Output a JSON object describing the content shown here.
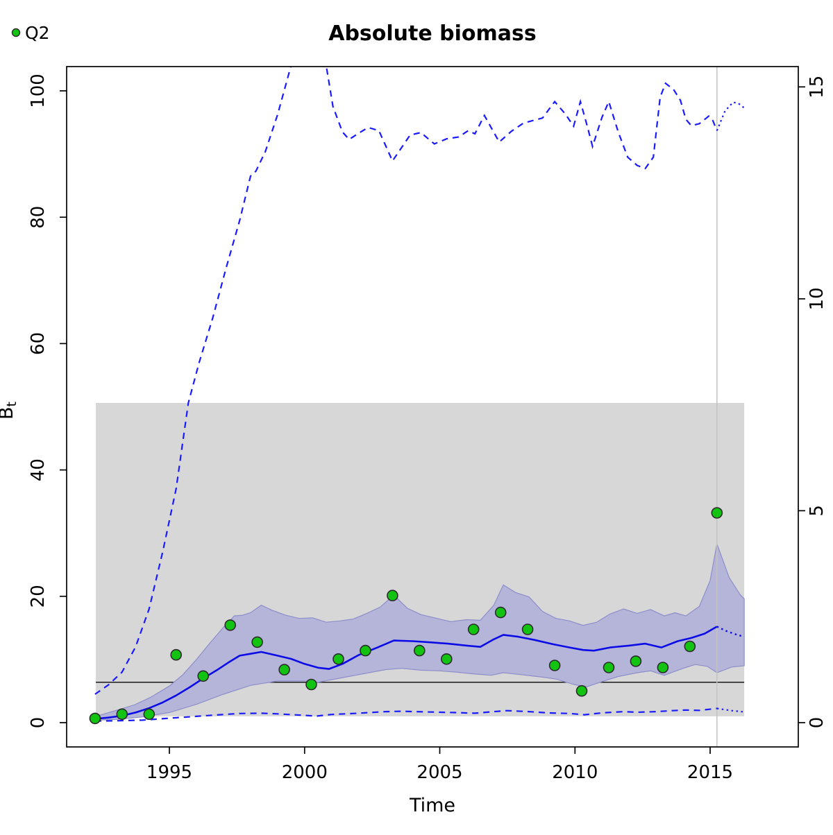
{
  "chart_data": {
    "type": "line",
    "title": "Absolute biomass",
    "xlabel": "Time",
    "ylabel": {
      "main": "B",
      "sub": "t"
    },
    "legend": [
      {
        "label": "Q2",
        "marker": "filled-circle",
        "color": "#12c312"
      }
    ],
    "axes": {
      "x": {
        "ticks": [
          1995,
          2000,
          2005,
          2010,
          2015
        ],
        "range": [
          1991.2,
          2018.26
        ],
        "grid": false
      },
      "y_left": {
        "ticks": [
          0,
          20,
          40,
          60,
          80,
          100
        ],
        "range": [
          -3.84,
          103.84
        ]
      },
      "y_right": {
        "ticks": [
          0,
          5,
          10,
          15
        ],
        "range": [
          -0.573,
          15.48
        ]
      }
    },
    "reference": {
      "bmsy_line": {
        "value": 6.4,
        "axis": "left",
        "x_span": [
          1992.28,
          2016.26
        ],
        "color": "#1a1a1a"
      },
      "bmsy_ci_box": {
        "low": 1.0,
        "high": 50.6,
        "x_span": [
          1992.28,
          2016.26
        ],
        "color": "#d7d7d7"
      },
      "data_end_vline": {
        "x": 2015.25,
        "color": "#c2c2c2"
      }
    },
    "colors": {
      "solid_line": "#0b0be6",
      "dashed_line": "#1a1aff",
      "band_fill": "#b5b5da",
      "band_edge": "#8d8dcb",
      "point_fill": "#12c312",
      "point_edge": "#2b2b2b"
    },
    "series": {
      "biomass_estimate": {
        "name": "biomass estimate (solid blue, left axis)",
        "main": [
          [
            1992.25,
            0.6
          ],
          [
            1992.75,
            0.8
          ],
          [
            1993.25,
            1.1
          ],
          [
            1993.75,
            1.6
          ],
          [
            1994.25,
            2.3
          ],
          [
            1994.75,
            3.2
          ],
          [
            1995.25,
            4.3
          ],
          [
            1995.75,
            5.6
          ],
          [
            1996.25,
            7.0
          ],
          [
            1996.75,
            8.3
          ],
          [
            1997.25,
            9.7
          ],
          [
            1997.6,
            10.6
          ],
          [
            1998.0,
            10.9
          ],
          [
            1998.4,
            11.2
          ],
          [
            1999.0,
            10.6
          ],
          [
            1999.5,
            10.1
          ],
          [
            2000.0,
            9.3
          ],
          [
            2000.5,
            8.7
          ],
          [
            2000.9,
            8.5
          ],
          [
            2001.4,
            9.3
          ],
          [
            2002.0,
            10.7
          ],
          [
            2002.7,
            11.9
          ],
          [
            2003.3,
            13.0
          ],
          [
            2004.0,
            12.9
          ],
          [
            2004.7,
            12.7
          ],
          [
            2005.3,
            12.5
          ],
          [
            2006.0,
            12.2
          ],
          [
            2006.5,
            12.0
          ],
          [
            2007.0,
            13.2
          ],
          [
            2007.35,
            13.9
          ],
          [
            2007.9,
            13.6
          ],
          [
            2008.5,
            13.1
          ],
          [
            2009.2,
            12.4
          ],
          [
            2009.8,
            11.9
          ],
          [
            2010.3,
            11.5
          ],
          [
            2010.7,
            11.4
          ],
          [
            2011.3,
            11.9
          ],
          [
            2012.0,
            12.2
          ],
          [
            2012.6,
            12.5
          ],
          [
            2013.2,
            11.9
          ],
          [
            2013.8,
            12.9
          ],
          [
            2014.3,
            13.4
          ],
          [
            2014.8,
            14.1
          ],
          [
            2015.25,
            15.2
          ]
        ],
        "forecast": [
          [
            2015.25,
            15.2
          ],
          [
            2015.6,
            14.5
          ],
          [
            2016.0,
            13.9
          ],
          [
            2016.26,
            13.6
          ]
        ]
      },
      "ci_band": {
        "name": "95% CI of biomass (shaded band, left axis)",
        "upper": [
          [
            1992.28,
            1.0
          ],
          [
            1993.0,
            1.9
          ],
          [
            1993.7,
            2.8
          ],
          [
            1994.3,
            4.0
          ],
          [
            1995.0,
            5.8
          ],
          [
            1995.5,
            7.6
          ],
          [
            1996.0,
            10.0
          ],
          [
            1996.5,
            12.6
          ],
          [
            1997.0,
            15.1
          ],
          [
            1997.4,
            16.9
          ],
          [
            1997.7,
            17.0
          ],
          [
            1998.0,
            17.4
          ],
          [
            1998.4,
            18.6
          ],
          [
            1998.8,
            17.8
          ],
          [
            1999.3,
            17.0
          ],
          [
            1999.8,
            16.5
          ],
          [
            2000.3,
            16.6
          ],
          [
            2000.8,
            15.9
          ],
          [
            2001.3,
            16.1
          ],
          [
            2001.8,
            16.4
          ],
          [
            2002.3,
            17.3
          ],
          [
            2002.8,
            18.3
          ],
          [
            2003.3,
            20.2
          ],
          [
            2003.8,
            18.1
          ],
          [
            2004.3,
            17.1
          ],
          [
            2004.9,
            16.5
          ],
          [
            2005.4,
            16.0
          ],
          [
            2006.0,
            16.3
          ],
          [
            2006.5,
            16.2
          ],
          [
            2007.0,
            18.6
          ],
          [
            2007.35,
            21.8
          ],
          [
            2007.8,
            20.6
          ],
          [
            2008.3,
            19.9
          ],
          [
            2008.8,
            17.6
          ],
          [
            2009.3,
            16.5
          ],
          [
            2009.8,
            16.1
          ],
          [
            2010.3,
            15.4
          ],
          [
            2010.8,
            15.9
          ],
          [
            2011.3,
            17.2
          ],
          [
            2011.8,
            18.0
          ],
          [
            2012.3,
            17.3
          ],
          [
            2012.8,
            17.9
          ],
          [
            2013.3,
            16.9
          ],
          [
            2013.7,
            17.4
          ],
          [
            2014.1,
            16.9
          ],
          [
            2014.6,
            18.4
          ],
          [
            2015.0,
            22.5
          ],
          [
            2015.25,
            28.3
          ],
          [
            2015.7,
            23.0
          ],
          [
            2016.1,
            20.3
          ],
          [
            2016.26,
            19.6
          ]
        ],
        "lower": [
          [
            1992.28,
            0.4
          ],
          [
            1993.0,
            0.5
          ],
          [
            1994.0,
            0.9
          ],
          [
            1995.0,
            1.6
          ],
          [
            1996.0,
            2.9
          ],
          [
            1997.0,
            4.5
          ],
          [
            1998.0,
            5.9
          ],
          [
            1999.0,
            6.6
          ],
          [
            2000.0,
            6.6
          ],
          [
            2000.5,
            6.4
          ],
          [
            2001.0,
            6.8
          ],
          [
            2002.0,
            7.6
          ],
          [
            2003.0,
            8.4
          ],
          [
            2003.6,
            8.6
          ],
          [
            2004.3,
            8.3
          ],
          [
            2005.0,
            8.2
          ],
          [
            2005.6,
            8.0
          ],
          [
            2006.3,
            7.7
          ],
          [
            2006.9,
            7.5
          ],
          [
            2007.35,
            7.9
          ],
          [
            2008.0,
            7.6
          ],
          [
            2008.8,
            7.2
          ],
          [
            2009.3,
            6.9
          ],
          [
            2010.0,
            6.0
          ],
          [
            2010.45,
            5.7
          ],
          [
            2011.0,
            6.5
          ],
          [
            2011.6,
            7.3
          ],
          [
            2012.3,
            7.9
          ],
          [
            2012.8,
            8.2
          ],
          [
            2013.3,
            7.5
          ],
          [
            2014.0,
            8.6
          ],
          [
            2014.45,
            9.2
          ],
          [
            2014.9,
            8.9
          ],
          [
            2015.25,
            7.9
          ],
          [
            2015.8,
            8.8
          ],
          [
            2016.26,
            9.0
          ]
        ]
      },
      "upper_dashed": {
        "name": "upper 95% limit (dashed blue, left axis)",
        "main": [
          [
            1992.25,
            4.5
          ],
          [
            1992.75,
            6.0
          ],
          [
            1993.25,
            8.0
          ],
          [
            1993.75,
            12.0
          ],
          [
            1994.25,
            18.0
          ],
          [
            1994.75,
            27.0
          ],
          [
            1995.25,
            37.0
          ],
          [
            1995.7,
            50.6
          ],
          [
            1996.1,
            57.0
          ],
          [
            1996.6,
            64.0
          ],
          [
            1997.1,
            72.0
          ],
          [
            1997.6,
            79.5
          ],
          [
            1998.0,
            86.5
          ],
          [
            1998.2,
            87.3
          ],
          [
            1998.55,
            90.4
          ],
          [
            1999.0,
            96.2
          ],
          [
            1999.5,
            104.0
          ],
          [
            2000.1,
            108.0
          ],
          [
            2000.8,
            104.0
          ],
          [
            2001.05,
            97.5
          ],
          [
            2001.4,
            93.5
          ],
          [
            2001.65,
            92.3
          ],
          [
            2002.0,
            93.3
          ],
          [
            2002.35,
            94.2
          ],
          [
            2002.75,
            93.7
          ],
          [
            2003.25,
            88.9
          ],
          [
            2003.9,
            93.0
          ],
          [
            2004.3,
            93.4
          ],
          [
            2004.8,
            91.6
          ],
          [
            2005.25,
            92.4
          ],
          [
            2005.7,
            92.7
          ],
          [
            2006.05,
            93.7
          ],
          [
            2006.3,
            93.2
          ],
          [
            2006.65,
            96.1
          ],
          [
            2007.2,
            91.9
          ],
          [
            2007.65,
            93.6
          ],
          [
            2008.1,
            94.9
          ],
          [
            2008.8,
            95.7
          ],
          [
            2009.25,
            98.3
          ],
          [
            2009.65,
            96.3
          ],
          [
            2009.95,
            94.4
          ],
          [
            2010.2,
            98.3
          ],
          [
            2010.45,
            94.5
          ],
          [
            2010.65,
            91.2
          ],
          [
            2011.0,
            95.8
          ],
          [
            2011.25,
            98.3
          ],
          [
            2011.6,
            93.5
          ],
          [
            2011.95,
            89.5
          ],
          [
            2012.3,
            88.2
          ],
          [
            2012.6,
            87.7
          ],
          [
            2012.9,
            89.5
          ],
          [
            2013.15,
            99.0
          ],
          [
            2013.35,
            101.2
          ],
          [
            2013.65,
            100.2
          ],
          [
            2013.9,
            98.5
          ],
          [
            2014.1,
            95.5
          ],
          [
            2014.3,
            94.5
          ],
          [
            2014.6,
            94.8
          ],
          [
            2014.95,
            96.0
          ],
          [
            2015.1,
            95.3
          ],
          [
            2015.25,
            93.7
          ]
        ],
        "forecast": [
          [
            2015.25,
            93.7
          ],
          [
            2015.55,
            96.8
          ],
          [
            2015.85,
            98.2
          ],
          [
            2016.05,
            98.0
          ],
          [
            2016.26,
            97.3
          ]
        ]
      },
      "lower_dashed": {
        "name": "lower 95% limit (dashed blue, left axis)",
        "main": [
          [
            1992.25,
            0.25
          ],
          [
            1993.0,
            0.3
          ],
          [
            1994.0,
            0.4
          ],
          [
            1995.0,
            0.7
          ],
          [
            1996.0,
            1.0
          ],
          [
            1997.0,
            1.3
          ],
          [
            1997.6,
            1.45
          ],
          [
            1998.4,
            1.5
          ],
          [
            1999.0,
            1.4
          ],
          [
            2000.0,
            1.15
          ],
          [
            2000.45,
            1.05
          ],
          [
            2001.0,
            1.3
          ],
          [
            2002.0,
            1.5
          ],
          [
            2003.0,
            1.75
          ],
          [
            2003.6,
            1.8
          ],
          [
            2004.5,
            1.7
          ],
          [
            2005.5,
            1.6
          ],
          [
            2006.3,
            1.5
          ],
          [
            2007.0,
            1.75
          ],
          [
            2007.5,
            1.9
          ],
          [
            2008.3,
            1.75
          ],
          [
            2009.0,
            1.55
          ],
          [
            2009.8,
            1.45
          ],
          [
            2010.35,
            1.25
          ],
          [
            2011.0,
            1.55
          ],
          [
            2011.8,
            1.75
          ],
          [
            2012.3,
            1.65
          ],
          [
            2013.0,
            1.75
          ],
          [
            2013.6,
            1.9
          ],
          [
            2014.1,
            2.0
          ],
          [
            2014.6,
            1.95
          ],
          [
            2015.25,
            2.25
          ]
        ],
        "forecast": [
          [
            2015.25,
            2.25
          ],
          [
            2015.8,
            1.9
          ],
          [
            2016.26,
            1.7
          ]
        ]
      },
      "observations_q2": {
        "name": "Q2 index observations (green points, right axis)",
        "points": [
          [
            1992.25,
            0.1
          ],
          [
            1993.25,
            0.2
          ],
          [
            1994.25,
            0.2
          ],
          [
            1995.25,
            1.6
          ],
          [
            1996.25,
            1.1
          ],
          [
            1997.25,
            2.3
          ],
          [
            1998.25,
            1.9
          ],
          [
            1999.25,
            1.25
          ],
          [
            2000.25,
            0.9
          ],
          [
            2001.25,
            1.5
          ],
          [
            2002.25,
            1.7
          ],
          [
            2003.25,
            3.0
          ],
          [
            2004.25,
            1.7
          ],
          [
            2005.25,
            1.5
          ],
          [
            2006.25,
            2.2
          ],
          [
            2007.25,
            2.6
          ],
          [
            2008.25,
            2.2
          ],
          [
            2009.25,
            1.35
          ],
          [
            2010.25,
            0.75
          ],
          [
            2011.25,
            1.3
          ],
          [
            2012.25,
            1.45
          ],
          [
            2013.25,
            1.3
          ],
          [
            2014.25,
            1.8
          ],
          [
            2015.25,
            4.95
          ]
        ]
      }
    }
  }
}
